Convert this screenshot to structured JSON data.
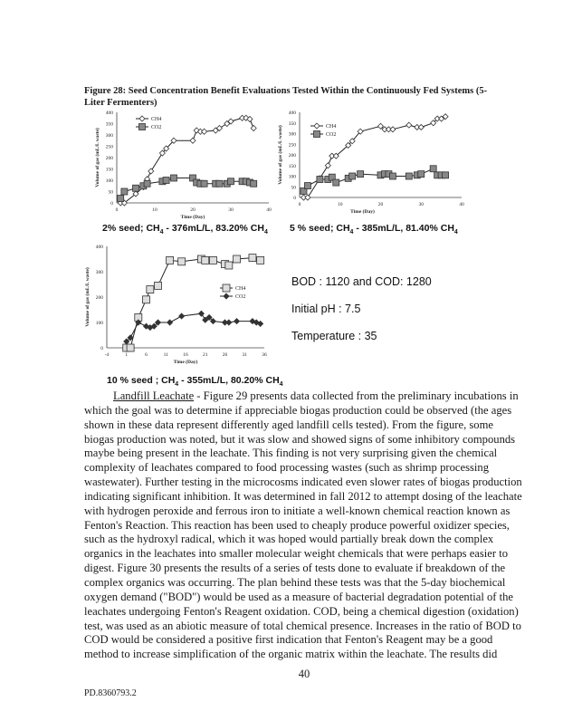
{
  "figure_caption": "Figure 28: Seed Concentration Benefit Evaluations Tested Within the Continuously Fed Systems (5-Liter Fermenters)",
  "chart_data": [
    {
      "type": "line",
      "xlabel": "Time (Day)",
      "ylabel": "Volume of gas (mL/L waste)",
      "xlim": [
        0,
        40
      ],
      "ylim": [
        0,
        400
      ],
      "xticks": [
        0,
        10,
        20,
        30,
        40
      ],
      "yticks": [
        0,
        50,
        100,
        150,
        200,
        250,
        300,
        350,
        400
      ],
      "legend_position": "top-left",
      "grid": false,
      "series": [
        {
          "name": "CH4",
          "marker": "open-diamond",
          "x": [
            1,
            2,
            5,
            7,
            8,
            9,
            12,
            13,
            15,
            20,
            21,
            22,
            23,
            26,
            27,
            29,
            30,
            33,
            34,
            35,
            36
          ],
          "y": [
            0,
            0,
            40,
            70,
            105,
            140,
            220,
            240,
            275,
            275,
            320,
            315,
            315,
            320,
            330,
            350,
            360,
            375,
            375,
            370,
            330
          ]
        },
        {
          "name": "CO2",
          "marker": "filled-square",
          "x": [
            1,
            2,
            5,
            7,
            8,
            12,
            13,
            15,
            20,
            21,
            22,
            23,
            26,
            27,
            29,
            30,
            33,
            34,
            35,
            36
          ],
          "y": [
            20,
            50,
            65,
            75,
            85,
            95,
            100,
            110,
            110,
            90,
            85,
            85,
            85,
            85,
            85,
            95,
            95,
            95,
            90,
            85
          ]
        }
      ],
      "subtitle": "2% seed; CH4 - 376mL/L, 83.20% CH4"
    },
    {
      "type": "line",
      "xlabel": "Time (Day)",
      "ylabel": "Volume of gas (mL/L waste)",
      "xlim": [
        0,
        40
      ],
      "ylim": [
        0,
        400
      ],
      "xticks": [
        0,
        10,
        20,
        30,
        40
      ],
      "yticks": [
        0,
        50,
        100,
        150,
        200,
        250,
        300,
        350,
        400
      ],
      "legend_position": "top-left",
      "grid": false,
      "series": [
        {
          "name": "CH4",
          "marker": "open-diamond",
          "x": [
            1,
            2,
            5,
            7,
            8,
            9,
            12,
            13,
            15,
            20,
            21,
            22,
            23,
            27,
            29,
            30,
            33,
            34,
            35,
            36
          ],
          "y": [
            0,
            0,
            90,
            150,
            195,
            195,
            245,
            265,
            310,
            335,
            320,
            320,
            320,
            340,
            330,
            330,
            350,
            370,
            370,
            380
          ]
        },
        {
          "name": "CO2",
          "marker": "filled-square",
          "x": [
            1,
            2,
            5,
            7,
            8,
            9,
            12,
            13,
            15,
            20,
            21,
            22,
            23,
            27,
            29,
            30,
            33,
            34,
            35,
            36
          ],
          "y": [
            30,
            55,
            85,
            85,
            95,
            70,
            90,
            100,
            110,
            105,
            110,
            110,
            100,
            100,
            105,
            110,
            135,
            105,
            105,
            105
          ]
        }
      ],
      "subtitle": "5 % seed; CH4 - 385mL/L, 81.40% CH4"
    },
    {
      "type": "line",
      "xlabel": "Time (Day)",
      "ylabel": "Volume of gas (mL/L waste)",
      "xlim": [
        -4,
        36
      ],
      "ylim": [
        0,
        400
      ],
      "xticks": [
        -4,
        1,
        6,
        11,
        16,
        21,
        26,
        31,
        36
      ],
      "yticks": [
        0,
        100,
        200,
        300,
        400
      ],
      "legend_position": "center-right",
      "grid": false,
      "series": [
        {
          "name": "CH4",
          "marker": "open-square",
          "x": [
            1,
            2,
            4,
            6,
            7,
            9,
            12,
            15,
            20,
            21,
            23,
            26,
            27,
            29,
            33,
            35
          ],
          "y": [
            0,
            0,
            120,
            190,
            230,
            245,
            345,
            340,
            350,
            345,
            345,
            330,
            325,
            350,
            355,
            345
          ]
        },
        {
          "name": "CO2",
          "marker": "filled-diamond",
          "x": [
            1,
            2,
            4,
            6,
            7,
            8,
            9,
            12,
            15,
            20,
            21,
            22,
            23,
            26,
            27,
            29,
            33,
            34,
            35
          ],
          "y": [
            25,
            40,
            100,
            85,
            80,
            85,
            100,
            100,
            125,
            135,
            110,
            120,
            105,
            100,
            100,
            105,
            105,
            100,
            95
          ]
        }
      ],
      "subtitle": "10 % seed ; CH4 - 355mL/L, 80.20% CH4"
    }
  ],
  "subtitles": [
    {
      "pre": "2% seed; CH",
      "sub": "4",
      "mid": " - 376mL/L, 83.20% CH",
      "sub2": "4"
    },
    {
      "pre": "5 % seed; CH",
      "sub": "4",
      "mid": " - 385mL/L, 81.40% CH",
      "sub2": "4"
    },
    {
      "pre": "10 % seed ; CH",
      "sub": "4",
      "mid": " - 355mL/L, 80.20% CH",
      "sub2": "4"
    }
  ],
  "conditions": {
    "bod_cod": "BOD : 1120 and COD: 1280",
    "ph": "Initial pH : 7.5",
    "temperature": "Temperature : 35"
  },
  "body": {
    "heading": "Landfill Leachate",
    "lines": [
      " - Figure 29 presents data collected from the preliminary incubations in",
      "which the goal was to determine if appreciable biogas production could be observed (the ages",
      "shown in these data represent differently aged landfill cells tested).  From the figure, some",
      "biogas production was noted, but it was slow and showed signs of some inhibitory compounds",
      "maybe being present in the leachate.  This finding is not very surprising given the chemical",
      "complexity of leachates compared to food processing wastes (such as shrimp processing",
      "wastewater).  Further testing in the microcosms indicated even slower rates of biogas production",
      "indicating significant inhibition.  It was determined in fall 2012 to attempt dosing of the leachate",
      "with hydrogen peroxide and ferrous iron to initiate a well-known chemical reaction known as",
      "Fenton's Reaction.  This reaction has been used to cheaply produce powerful oxidizer species,",
      "such as the hydroxyl radical, which it was hoped would partially break down the complex",
      "organics in the leachates into smaller molecular weight chemicals that were perhaps easier to",
      "digest.  Figure 30 presents the results of a series of tests done to evaluate if breakdown of the",
      "complex organics was occurring.  The plan behind these tests was that the 5-day biochemical",
      "oxygen demand (\"BOD\") would be used as a measure of bacterial degradation potential of the",
      "leachates undergoing Fenton's Reagent oxidation.  COD, being a chemical digestion (oxidation)",
      "test, was used as an abiotic measure of total chemical presence.  Increases in the ratio of BOD to",
      "COD would be considered a positive first indication that Fenton's Reagent may be a good",
      "method to increase simplification of the organic matrix within the leachate.  The results did"
    ]
  },
  "page_number": "40",
  "footer": "PD.8360793.2"
}
